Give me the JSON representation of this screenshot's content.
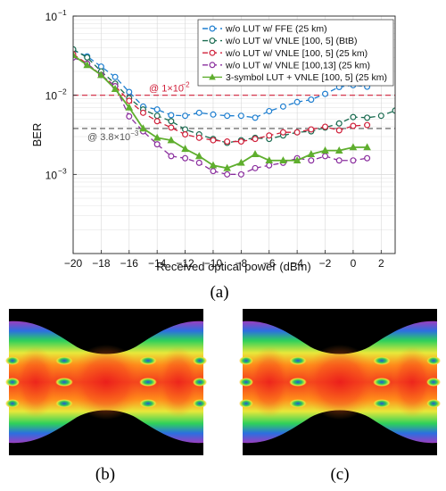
{
  "chart_data": {
    "type": "line",
    "xlabel": "Received optical power (dBm)",
    "ylabel": "BER",
    "x_ticks": [
      "−20",
      "−18",
      "−16",
      "−14",
      "−12",
      "−10",
      "−8",
      "−6",
      "−4",
      "−2",
      "0",
      "2"
    ],
    "y_ticks": [
      {
        "base": "10",
        "exp": "−1"
      },
      {
        "base": "10",
        "exp": "−2"
      },
      {
        "base": "10",
        "exp": "−3"
      }
    ],
    "xlim": [
      -20,
      3
    ],
    "ylim": [
      0.0001,
      0.1
    ],
    "yscale": "log",
    "grid": true,
    "legend_position": "top-right",
    "series": [
      {
        "name": "w/o LUT w/ FFE (25 km)",
        "color": "#1f7fd0",
        "marker": "circle",
        "dash": "6,4",
        "x": [
          -20,
          -19,
          -18,
          -17,
          -16,
          -15,
          -14,
          -13,
          -12,
          -11,
          -10,
          -9,
          -8,
          -7,
          -6,
          -5,
          -4,
          -3,
          -2,
          -1,
          0,
          1
        ],
        "y": [
          0.037,
          0.031,
          0.023,
          0.017,
          0.011,
          0.0072,
          0.0066,
          0.0056,
          0.0055,
          0.006,
          0.0057,
          0.0055,
          0.0055,
          0.0052,
          0.0063,
          0.0072,
          0.0082,
          0.0088,
          0.0104,
          0.0127,
          0.0134,
          0.0128
        ]
      },
      {
        "name": "w/o LUT w/ VNLE [100, 5] (BtB)",
        "color": "#1a6b50",
        "marker": "circle",
        "dash": "6,4",
        "x": [
          -20,
          -19,
          -18,
          -17,
          -16,
          -15,
          -14,
          -13,
          -12,
          -11,
          -10,
          -9,
          -8,
          -7,
          -6,
          -5,
          -4,
          -3,
          -2,
          -1,
          0,
          1,
          2,
          3
        ],
        "y": [
          0.038,
          0.03,
          0.02,
          0.014,
          0.0092,
          0.0066,
          0.0055,
          0.0047,
          0.0037,
          0.0032,
          0.0028,
          0.0025,
          0.0027,
          0.0029,
          0.0028,
          0.0031,
          0.0034,
          0.0035,
          0.0039,
          0.0044,
          0.0053,
          0.0052,
          0.0055,
          0.0064
        ]
      },
      {
        "name": "w/o LUT w/ VNLE [100, 5] (25 km)",
        "color": "#d0203a",
        "marker": "circle",
        "dash": "6,4",
        "x": [
          -20,
          -19,
          -18,
          -17,
          -16,
          -15,
          -14,
          -13,
          -12,
          -11,
          -10,
          -9,
          -8,
          -7,
          -6,
          -5,
          -4,
          -3,
          -2,
          -1,
          0,
          1
        ],
        "y": [
          0.033,
          0.025,
          0.018,
          0.013,
          0.0085,
          0.006,
          0.0047,
          0.0039,
          0.0032,
          0.0029,
          0.0027,
          0.0026,
          0.0026,
          0.0028,
          0.0031,
          0.0034,
          0.0034,
          0.0037,
          0.004,
          0.0036,
          0.0041,
          0.0042
        ]
      },
      {
        "name": "w/o LUT w/ VNLE [100,13] (25 km)",
        "color": "#8a2e9e",
        "marker": "circle",
        "dash": "6,4",
        "x": [
          -20,
          -19,
          -18,
          -17,
          -16,
          -15,
          -14,
          -13,
          -12,
          -11,
          -10,
          -9,
          -8,
          -7,
          -6,
          -5,
          -4,
          -3,
          -2,
          -1,
          0,
          1
        ],
        "y": [
          0.03,
          0.025,
          0.018,
          0.013,
          0.0054,
          0.0035,
          0.0024,
          0.0017,
          0.0016,
          0.0014,
          0.0011,
          0.001,
          0.001,
          0.0012,
          0.0013,
          0.0014,
          0.0016,
          0.0015,
          0.0017,
          0.0015,
          0.0015,
          0.0016
        ]
      },
      {
        "name": "3-symbol LUT + VNLE [100, 5] (25 km)",
        "color": "#5fae2e",
        "marker": "triangle",
        "dash": "",
        "x": [
          -20,
          -19,
          -18,
          -17,
          -16,
          -15,
          -14,
          -13,
          -12,
          -11,
          -10,
          -9,
          -8,
          -7,
          -6,
          -5,
          -4,
          -3,
          -2,
          -1,
          0,
          1
        ],
        "y": [
          0.032,
          0.024,
          0.018,
          0.012,
          0.007,
          0.0038,
          0.0029,
          0.0027,
          0.0021,
          0.0017,
          0.0013,
          0.0012,
          0.0014,
          0.0018,
          0.0015,
          0.0015,
          0.0015,
          0.0018,
          0.002,
          0.002,
          0.0022,
          0.0022
        ]
      }
    ],
    "thresholds": [
      {
        "value": 0.01,
        "color": "#d0203a",
        "label": "@ 1×10",
        "exp": "−2"
      },
      {
        "value": 0.0038,
        "color": "#555555",
        "label": "@ 3.8×10",
        "exp": "−3"
      }
    ]
  },
  "captions": {
    "a": "(a)",
    "b": "(b)",
    "c": "(c)"
  }
}
